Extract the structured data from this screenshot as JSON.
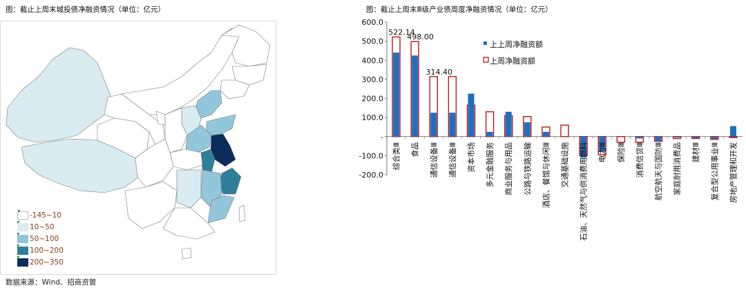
{
  "left": {
    "title": "图：截止上周末城投债净融资情况（单位：亿元）",
    "source": "数据来源：Wind、招商资管",
    "legend": [
      {
        "label": "-145~10",
        "color": "#ffffff"
      },
      {
        "label": "10~50",
        "color": "#d9ecf2"
      },
      {
        "label": "50~100",
        "color": "#92c6db"
      },
      {
        "label": "100~200",
        "color": "#2f7f9c"
      },
      {
        "label": "200~350",
        "color": "#0c2d5a"
      }
    ]
  },
  "right": {
    "title": "图：截止上周末Ⅲ级产业债周度净融资情况（单位：亿元）"
  },
  "chart_data": {
    "type": "bar",
    "categories": [
      "综合类Ⅲ",
      "食品",
      "通信设备Ⅲ",
      "通信设备Ⅲ",
      "资本市场",
      "多元金融服务",
      "商业服务与用品",
      "公路与铁路运输",
      "酒店、餐馆与休闲Ⅲ",
      "交通基础设施",
      "石油、天然气与供消费用燃料",
      "电力Ⅲ",
      "保险Ⅲ",
      "消费信贷Ⅲ",
      "航空航天与国防Ⅲ",
      "家庭耐用消费品",
      "建材Ⅲ",
      "复合型公用事业Ⅲ",
      "房地产管理和开发"
    ],
    "series": [
      {
        "name": "上上周净融资额",
        "color": "#1f6fbf",
        "values": [
          440,
          425,
          125,
          125,
          225,
          25,
          130,
          75,
          25,
          0,
          -110,
          -80,
          0,
          -10,
          -25,
          -5,
          -8,
          -12,
          55
        ]
      },
      {
        "name": "上周净融资额",
        "color": "#c0141a",
        "values": [
          522.14,
          498.0,
          314.4,
          314.4,
          165,
          130,
          110,
          105,
          50,
          60,
          -100,
          -95,
          -30,
          -30,
          -25,
          -10,
          -10,
          -15,
          -5
        ]
      }
    ],
    "data_labels": [
      {
        "index": 0,
        "text": "522.14"
      },
      {
        "index": 1,
        "text": "498.00"
      },
      {
        "index": 2,
        "text": "314.40"
      }
    ],
    "ylim": [
      -200,
      600
    ],
    "yticks": [
      {
        "value": 600,
        "label": "600.0"
      },
      {
        "value": 500,
        "label": "500.0"
      },
      {
        "value": 400,
        "label": "400.0"
      },
      {
        "value": 300,
        "label": "300.0"
      },
      {
        "value": 200,
        "label": "200.0"
      },
      {
        "value": 100,
        "label": "100.0"
      },
      {
        "value": 0,
        "label": "-"
      },
      {
        "value": -100,
        "label": "-100.0"
      },
      {
        "value": -200,
        "label": "-200.0"
      }
    ],
    "legend_position": "top-center"
  }
}
